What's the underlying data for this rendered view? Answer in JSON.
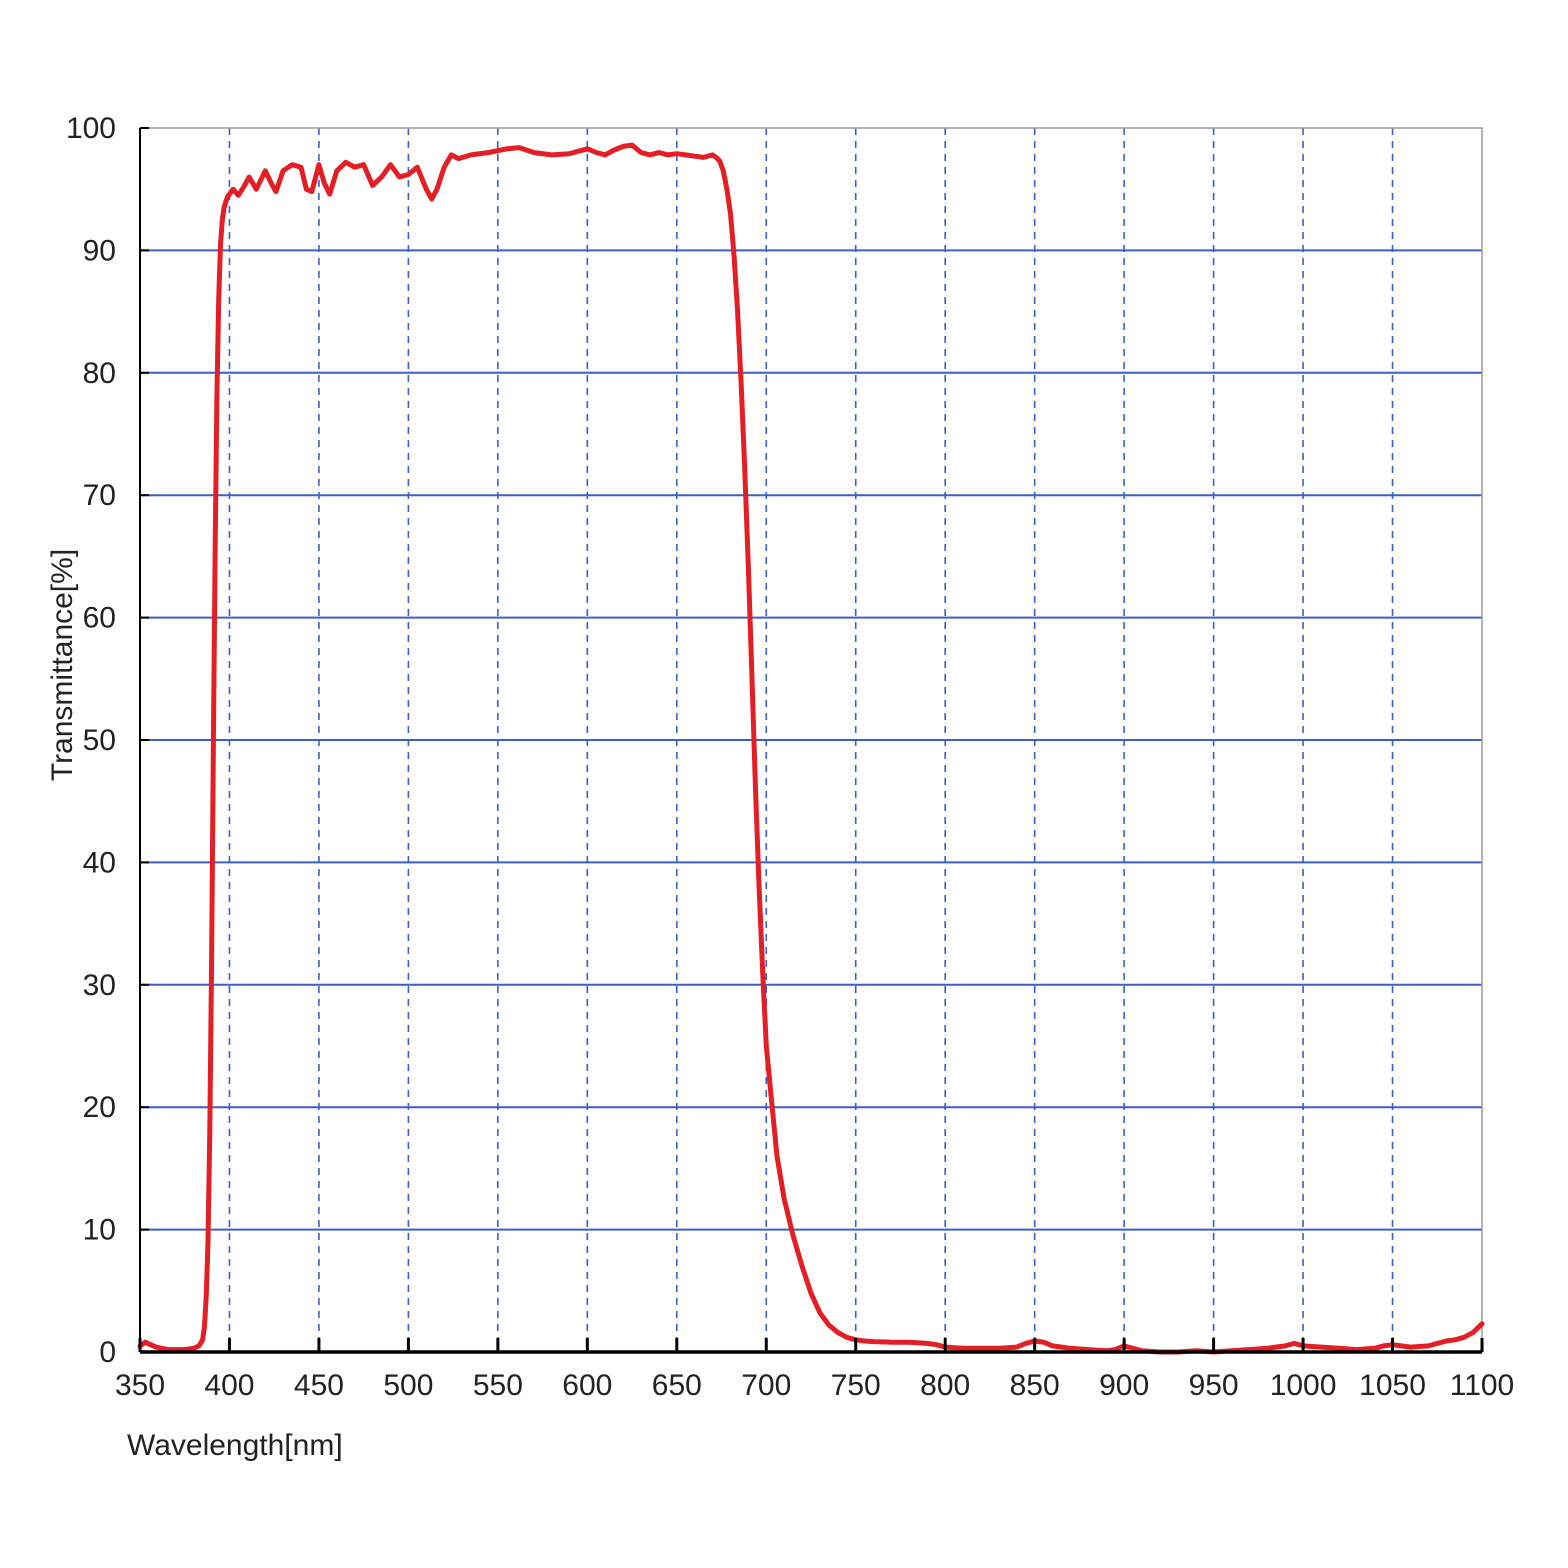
{
  "chart_data": {
    "type": "line",
    "title": "",
    "xlabel": "Wavelength[nm]",
    "ylabel": "Transmittance[%]",
    "xlim": [
      350,
      1100
    ],
    "ylim": [
      0,
      100
    ],
    "x_ticks": [
      350,
      400,
      450,
      500,
      550,
      600,
      650,
      700,
      750,
      800,
      850,
      900,
      950,
      1000,
      1050,
      1100
    ],
    "y_ticks": [
      0,
      10,
      20,
      30,
      40,
      50,
      60,
      70,
      80,
      90,
      100
    ],
    "grid": {
      "horizontal": "solid",
      "vertical": "dashed",
      "color": "#3a5fc8"
    },
    "legend": "none",
    "series": [
      {
        "color": "#e31e24",
        "x": [
          350,
          353,
          356,
          359,
          362,
          366,
          370,
          375,
          380,
          383,
          385,
          386,
          387,
          388,
          389,
          390,
          391,
          392,
          393,
          394,
          395,
          396,
          397,
          398,
          399,
          400,
          402,
          405,
          408,
          411,
          415,
          420,
          424,
          426,
          430,
          435,
          440,
          443,
          446,
          450,
          453,
          456,
          460,
          465,
          470,
          475,
          480,
          485,
          490,
          495,
          500,
          505,
          510,
          513,
          516,
          520,
          524,
          528,
          535,
          545,
          555,
          562,
          570,
          580,
          590,
          600,
          605,
          610,
          615,
          620,
          625,
          630,
          635,
          640,
          645,
          650,
          655,
          660,
          665,
          670,
          672,
          674,
          676,
          678,
          680,
          682,
          684,
          686,
          688,
          690,
          692,
          694,
          696,
          698,
          700,
          703,
          706,
          710,
          715,
          720,
          725,
          730,
          735,
          740,
          745,
          750,
          755,
          760,
          770,
          780,
          790,
          795,
          800,
          810,
          820,
          830,
          840,
          845,
          850,
          855,
          860,
          870,
          880,
          890,
          895,
          900,
          910,
          920,
          930,
          940,
          950,
          960,
          970,
          980,
          990,
          995,
          1000,
          1010,
          1020,
          1030,
          1040,
          1045,
          1050,
          1060,
          1070,
          1080,
          1085,
          1090,
          1095,
          1100
        ],
        "y": [
          0.5,
          0.8,
          0.6,
          0.4,
          0.3,
          0.2,
          0.2,
          0.2,
          0.3,
          0.5,
          1.0,
          2.0,
          4.5,
          9,
          18,
          32,
          50,
          66,
          78,
          86,
          90.5,
          92.5,
          93.5,
          94.0,
          94.4,
          94.6,
          95.0,
          94.5,
          95.2,
          96.0,
          95.0,
          96.5,
          95.3,
          94.8,
          96.5,
          97.0,
          96.8,
          95.0,
          94.8,
          97.0,
          95.5,
          94.6,
          96.5,
          97.2,
          96.8,
          97.0,
          95.3,
          96.0,
          97.0,
          96.0,
          96.2,
          96.8,
          95.0,
          94.2,
          95.0,
          96.8,
          97.8,
          97.5,
          97.8,
          98.0,
          98.3,
          98.4,
          98.0,
          97.8,
          97.9,
          98.3,
          98.0,
          97.8,
          98.2,
          98.5,
          98.6,
          98.0,
          97.8,
          98.0,
          97.8,
          97.9,
          97.8,
          97.7,
          97.6,
          97.8,
          97.6,
          97.3,
          96.5,
          95.0,
          93.0,
          89.5,
          85.0,
          79.0,
          72.0,
          64.0,
          55.0,
          46.0,
          38.0,
          31.0,
          25.0,
          20.5,
          16.0,
          12.5,
          9.5,
          7.0,
          4.8,
          3.2,
          2.2,
          1.6,
          1.2,
          1.0,
          0.9,
          0.85,
          0.8,
          0.8,
          0.7,
          0.6,
          0.4,
          0.3,
          0.3,
          0.3,
          0.4,
          0.7,
          0.9,
          0.8,
          0.5,
          0.3,
          0.2,
          0.1,
          0.2,
          0.5,
          0.1,
          0.0,
          0.0,
          0.1,
          0.0,
          0.1,
          0.2,
          0.3,
          0.5,
          0.7,
          0.5,
          0.4,
          0.3,
          0.2,
          0.3,
          0.5,
          0.6,
          0.4,
          0.5,
          0.9,
          1.0,
          1.2,
          1.6,
          2.3
        ]
      }
    ]
  }
}
